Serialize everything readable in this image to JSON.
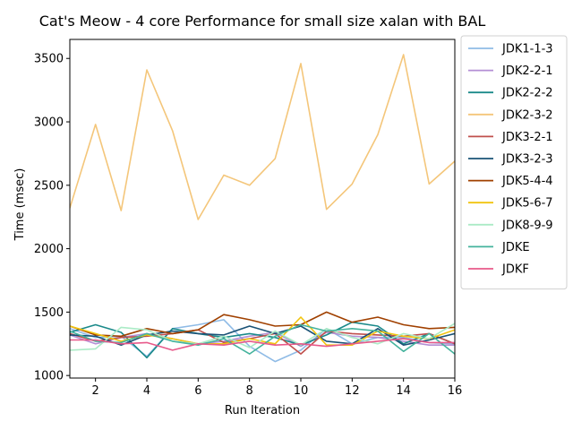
{
  "chart_data": {
    "type": "line",
    "title": "Cat's Meow - 4 core Performance for small size xalan with BAL",
    "xlabel": "Run Iteration",
    "ylabel": "Time (msec)",
    "xlim": [
      1,
      16
    ],
    "ylim": [
      980,
      3650
    ],
    "xticks": [
      2,
      4,
      6,
      8,
      10,
      12,
      14,
      16
    ],
    "yticks": [
      1000,
      1500,
      2000,
      2500,
      3000,
      3500
    ],
    "grid": false,
    "legend_position": "outside right, top",
    "x": [
      1,
      2,
      3,
      4,
      5,
      6,
      7,
      8,
      9,
      10,
      11,
      12,
      13,
      14,
      15,
      16
    ],
    "series": [
      {
        "name": "JDK1-1-3",
        "color": "#8fbbe6",
        "values": [
          1370,
          1300,
          1310,
          1150,
          1370,
          1400,
          1440,
          1230,
          1110,
          1200,
          1370,
          1250,
          1300,
          1300,
          1260,
          1250
        ]
      },
      {
        "name": "JDK2-2-1",
        "color": "#b48fd4",
        "values": [
          1320,
          1250,
          1300,
          1330,
          1290,
          1250,
          1270,
          1310,
          1340,
          1230,
          1340,
          1310,
          1300,
          1270,
          1240,
          1240
        ]
      },
      {
        "name": "JDK2-2-2",
        "color": "#1b8a8a",
        "values": [
          1340,
          1400,
          1340,
          1140,
          1370,
          1330,
          1300,
          1330,
          1300,
          1240,
          1320,
          1420,
          1390,
          1250,
          1330,
          1250
        ]
      },
      {
        "name": "JDK2-3-2",
        "color": "#f4c67a",
        "values": [
          2320,
          2980,
          2300,
          3410,
          2930,
          2230,
          2580,
          2500,
          2710,
          3460,
          2310,
          2510,
          2900,
          3530,
          2510,
          2690
        ]
      },
      {
        "name": "JDK3-2-1",
        "color": "#c0504d",
        "values": [
          1330,
          1270,
          1300,
          1310,
          1330,
          1360,
          1260,
          1290,
          1330,
          1170,
          1350,
          1330,
          1320,
          1310,
          1330,
          1250
        ]
      },
      {
        "name": "JDK3-2-3",
        "color": "#1a5276",
        "values": [
          1320,
          1310,
          1240,
          1320,
          1350,
          1330,
          1320,
          1390,
          1330,
          1390,
          1270,
          1250,
          1370,
          1240,
          1280,
          1330
        ]
      },
      {
        "name": "JDK5-4-4",
        "color": "#a04000",
        "values": [
          1390,
          1320,
          1310,
          1370,
          1330,
          1360,
          1480,
          1440,
          1390,
          1400,
          1500,
          1420,
          1460,
          1400,
          1370,
          1380
        ]
      },
      {
        "name": "JDK5-6-7",
        "color": "#f1c40f",
        "values": [
          1390,
          1330,
          1270,
          1320,
          1290,
          1250,
          1250,
          1290,
          1250,
          1460,
          1240,
          1240,
          1350,
          1310,
          1290,
          1360
        ]
      },
      {
        "name": "JDK8-9-9",
        "color": "#abebc6",
        "values": [
          1200,
          1210,
          1380,
          1360,
          1270,
          1250,
          1310,
          1220,
          1350,
          1240,
          1370,
          1300,
          1250,
          1330,
          1290,
          1410
        ]
      },
      {
        "name": "JDKE",
        "color": "#45b39d",
        "values": [
          1350,
          1270,
          1260,
          1330,
          1270,
          1240,
          1290,
          1170,
          1310,
          1400,
          1350,
          1370,
          1350,
          1190,
          1330,
          1170
        ]
      },
      {
        "name": "JDKF",
        "color": "#e8598a",
        "values": [
          1280,
          1280,
          1250,
          1260,
          1200,
          1250,
          1240,
          1270,
          1240,
          1250,
          1230,
          1250,
          1270,
          1290,
          1260,
          1260
        ]
      }
    ]
  }
}
